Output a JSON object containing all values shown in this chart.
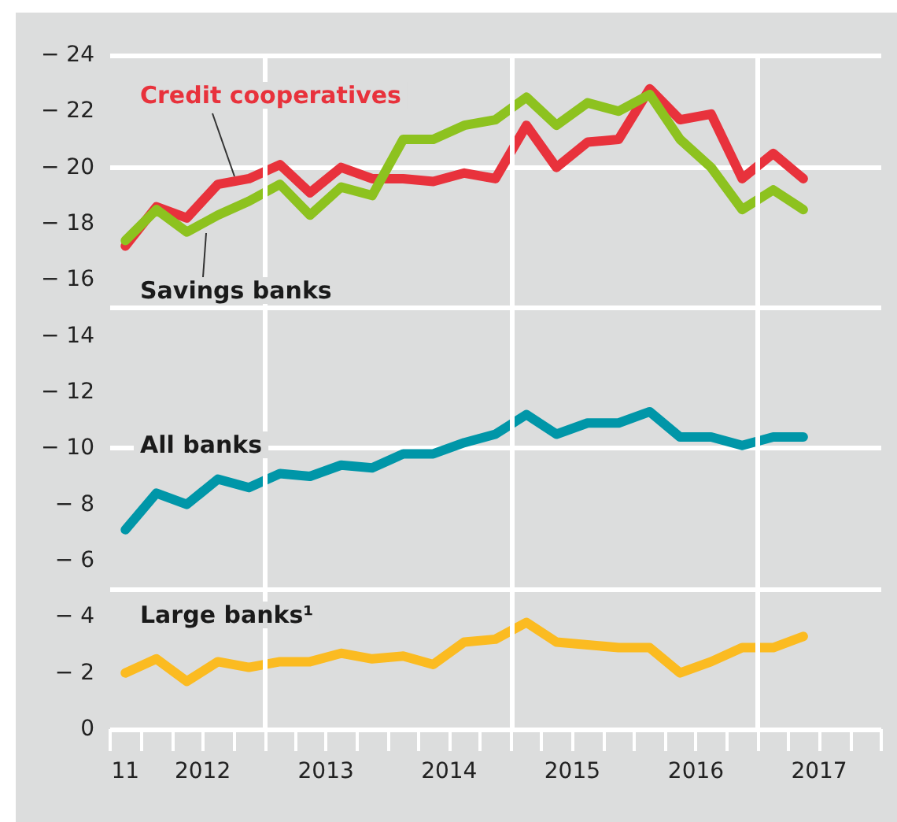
{
  "chart_data": {
    "type": "line",
    "x": [
      "2011-11-15",
      "2012-02-15",
      "2012-05-15",
      "2012-08-15",
      "2012-11-15",
      "2013-02-15",
      "2013-05-15",
      "2013-08-15",
      "2013-11-15",
      "2014-02-15",
      "2014-05-15",
      "2014-08-15",
      "2014-11-15",
      "2015-02-15",
      "2015-05-15",
      "2015-08-15",
      "2015-11-15",
      "2016-02-15",
      "2016-05-15",
      "2016-08-15",
      "2016-11-15",
      "2017-02-15",
      "2017-05-15"
    ],
    "series": [
      {
        "name": "Credit cooperatives",
        "color": "#e8323c",
        "values": [
          -17.2,
          -18.6,
          -18.2,
          -19.4,
          -19.6,
          -20.1,
          -19.1,
          -20.0,
          -19.6,
          -19.6,
          -19.5,
          -19.8,
          -19.6,
          -21.5,
          -20.0,
          -20.9,
          -21.0,
          -22.8,
          -21.7,
          -21.9,
          -19.6,
          -20.5,
          -19.6
        ]
      },
      {
        "name": "Savings banks",
        "color": "#8dc21f",
        "values": [
          -17.4,
          -18.5,
          -17.7,
          -18.3,
          -18.8,
          -19.4,
          -18.3,
          -19.3,
          -19.0,
          -21.0,
          -21.0,
          -21.5,
          -21.7,
          -22.5,
          -21.5,
          -22.3,
          -22.0,
          -22.6,
          -21.0,
          -20.0,
          -18.5,
          -19.2,
          -18.5
        ]
      },
      {
        "name": "All banks",
        "color": "#0096a8",
        "values": [
          -7.1,
          -8.4,
          -8.0,
          -8.9,
          -8.6,
          -9.1,
          -9.0,
          -9.4,
          -9.3,
          -9.8,
          -9.8,
          -10.2,
          -10.5,
          -11.2,
          -10.5,
          -10.9,
          -10.9,
          -11.3,
          -10.4,
          -10.4,
          -10.1,
          -10.4,
          -10.4
        ]
      },
      {
        "name": "Large banks¹",
        "color": "#fbbb21",
        "values": [
          -2.0,
          -2.5,
          -1.7,
          -2.4,
          -2.2,
          -2.4,
          -2.4,
          -2.7,
          -2.5,
          -2.6,
          -2.3,
          -3.1,
          -3.2,
          -3.8,
          -3.1,
          -3.0,
          -2.9,
          -2.9,
          -2.0,
          -2.4,
          -2.9,
          -2.9,
          -3.3
        ]
      }
    ],
    "xlim": [
      "2011-10-01",
      "2018-01-01"
    ],
    "xticks": [
      {
        "value": "2011-10-01",
        "label": null
      },
      {
        "value": "2012-01-01",
        "label": null
      },
      {
        "value": "2012-04-01",
        "label": null
      },
      {
        "value": "2012-07-01",
        "label": null
      },
      {
        "value": "2012-10-01",
        "label": null
      },
      {
        "value": "2013-01-01",
        "label": null
      },
      {
        "value": "2013-04-01",
        "label": null
      },
      {
        "value": "2013-07-01",
        "label": null
      },
      {
        "value": "2013-10-01",
        "label": null
      },
      {
        "value": "2014-01-01",
        "label": null
      },
      {
        "value": "2014-04-01",
        "label": null
      },
      {
        "value": "2014-07-01",
        "label": null
      },
      {
        "value": "2014-10-01",
        "label": null
      },
      {
        "value": "2015-01-01",
        "label": null
      },
      {
        "value": "2015-04-01",
        "label": null
      },
      {
        "value": "2015-07-01",
        "label": null
      },
      {
        "value": "2015-10-01",
        "label": null
      },
      {
        "value": "2016-01-01",
        "label": null
      },
      {
        "value": "2016-04-01",
        "label": null
      },
      {
        "value": "2016-07-01",
        "label": null
      },
      {
        "value": "2016-10-01",
        "label": null
      },
      {
        "value": "2017-01-01",
        "label": null
      },
      {
        "value": "2017-04-01",
        "label": null
      },
      {
        "value": "2017-07-01",
        "label": null
      },
      {
        "value": "2017-10-01",
        "label": null
      },
      {
        "value": "2018-01-01",
        "label": null
      },
      {
        "value": "2011-11-15",
        "label": "11"
      },
      {
        "value": "2012-07-01",
        "label": "2012"
      },
      {
        "value": "2013-07-01",
        "label": "2013"
      },
      {
        "value": "2014-07-01",
        "label": "2014"
      },
      {
        "value": "2015-07-01",
        "label": "2015"
      },
      {
        "value": "2016-07-01",
        "label": "2016"
      },
      {
        "value": "2017-07-01",
        "label": "2017"
      }
    ],
    "ylim": [
      0,
      -24
    ],
    "yticks": [
      {
        "value": 0,
        "label": "0"
      },
      {
        "value": -2,
        "label": "− 2"
      },
      {
        "value": -4,
        "label": "− 4"
      },
      {
        "value": -6,
        "label": "− 6"
      },
      {
        "value": -8,
        "label": "− 8"
      },
      {
        "value": -10,
        "label": "− 10"
      },
      {
        "value": -12,
        "label": "− 12"
      },
      {
        "value": -14,
        "label": "− 14"
      },
      {
        "value": -16,
        "label": "− 16"
      },
      {
        "value": -18,
        "label": "− 18"
      },
      {
        "value": -20,
        "label": "− 20"
      },
      {
        "value": -22,
        "label": "− 22"
      },
      {
        "value": -24,
        "label": "− 24"
      }
    ],
    "ref_lines": [
      {
        "axis": "x",
        "value": "2013-01-01",
        "color": "#ffffff"
      },
      {
        "axis": "x",
        "value": "2015-01-01",
        "color": "#ffffff"
      },
      {
        "axis": "x",
        "value": "2017-01-01",
        "color": "#ffffff"
      }
    ],
    "grid": "y",
    "legend": false,
    "marker": "none",
    "line_style": "solid"
  }
}
